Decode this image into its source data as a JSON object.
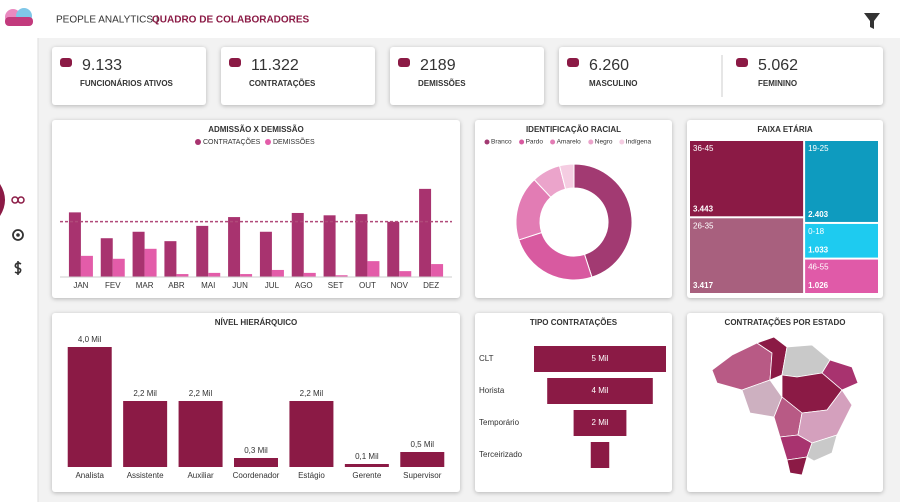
{
  "header": {
    "title": "PEOPLE ANALYTICS |",
    "subtitle": "QUADRO DE COLABORADORES"
  },
  "kpis": [
    {
      "value": "9.133",
      "label": "FUNCIONÁRIOS ATIVOS"
    },
    {
      "value": "11.322",
      "label": "CONTRATAÇÕES"
    },
    {
      "value": "2189",
      "label": "DEMISSÕES"
    },
    {
      "value": "6.260",
      "label": "MASCULINO"
    },
    {
      "value": "5.062",
      "label": "FEMININO"
    }
  ],
  "chart_data": [
    {
      "type": "bar",
      "title": "ADMISSÃO X DEMISSÃO",
      "categories": [
        "JAN",
        "FEV",
        "MAR",
        "ABR",
        "MAI",
        "JUN",
        "JUL",
        "AGO",
        "SET",
        "OUT",
        "NOV",
        "DEZ"
      ],
      "series": [
        {
          "name": "CONTRATAÇÕES",
          "color": "#a8336f",
          "values": [
            1100,
            660,
            770,
            610,
            870,
            1020,
            770,
            1090,
            1050,
            1070,
            940,
            1500
          ]
        },
        {
          "name": "DEMISSÕES",
          "color": "#e35ca9",
          "values": [
            360,
            310,
            480,
            50,
            70,
            50,
            120,
            70,
            30,
            270,
            100,
            220
          ]
        }
      ],
      "ylim": [
        0,
        1600
      ],
      "reference_line": 943,
      "reference_color": "#b04a7a"
    },
    {
      "type": "pie",
      "title": "IDENTIFICAÇÃO RACIAL",
      "categories": [
        "Branco",
        "Pardo",
        "Amarelo",
        "Negro",
        "Indígena"
      ],
      "values": [
        45,
        25,
        18,
        8,
        4
      ],
      "colors": [
        "#a23a72",
        "#d85aa0",
        "#e27cb4",
        "#eba4cb",
        "#f5cde2"
      ]
    },
    {
      "type": "treemap",
      "title": "FAIXA ETÁRIA",
      "categories": [
        "36-45",
        "26-35",
        "19-25",
        "0-18",
        "46-55"
      ],
      "values": [
        3443,
        3417,
        2403,
        1033,
        1026
      ],
      "value_labels": [
        "3.443",
        "3.417",
        "2.403",
        "1.033",
        "1.026"
      ],
      "colors": [
        "#8b1a45",
        "#a8607e",
        "#0e9bbf",
        "#1ecbf0",
        "#e05aa8"
      ]
    },
    {
      "type": "bar",
      "title": "NÍVEL HIERÁRQUICO",
      "categories": [
        "Analista",
        "Assistente",
        "Auxiliar",
        "Coordenador",
        "Estágio",
        "Gerente",
        "Supervisor"
      ],
      "values": [
        4000,
        2200,
        2200,
        300,
        2200,
        100,
        500
      ],
      "value_labels": [
        "4,0 Mil",
        "2,2 Mil",
        "2,2 Mil",
        "0,3 Mil",
        "2,2 Mil",
        "0,1 Mil",
        "0,5 Mil"
      ],
      "color": "#8b1a45",
      "ylim": [
        0,
        4000
      ]
    },
    {
      "type": "funnel",
      "title": "TIPO CONTRATAÇÕES",
      "categories": [
        "CLT",
        "Horista",
        "Temporário",
        "Terceirizado"
      ],
      "values": [
        5000,
        4000,
        2000,
        700
      ],
      "value_labels": [
        "5 Mil",
        "4 Mil",
        "2 Mil",
        null
      ],
      "color": "#8b1a45"
    },
    {
      "type": "map",
      "title": "CONTRATAÇÕES POR ESTADO"
    }
  ]
}
